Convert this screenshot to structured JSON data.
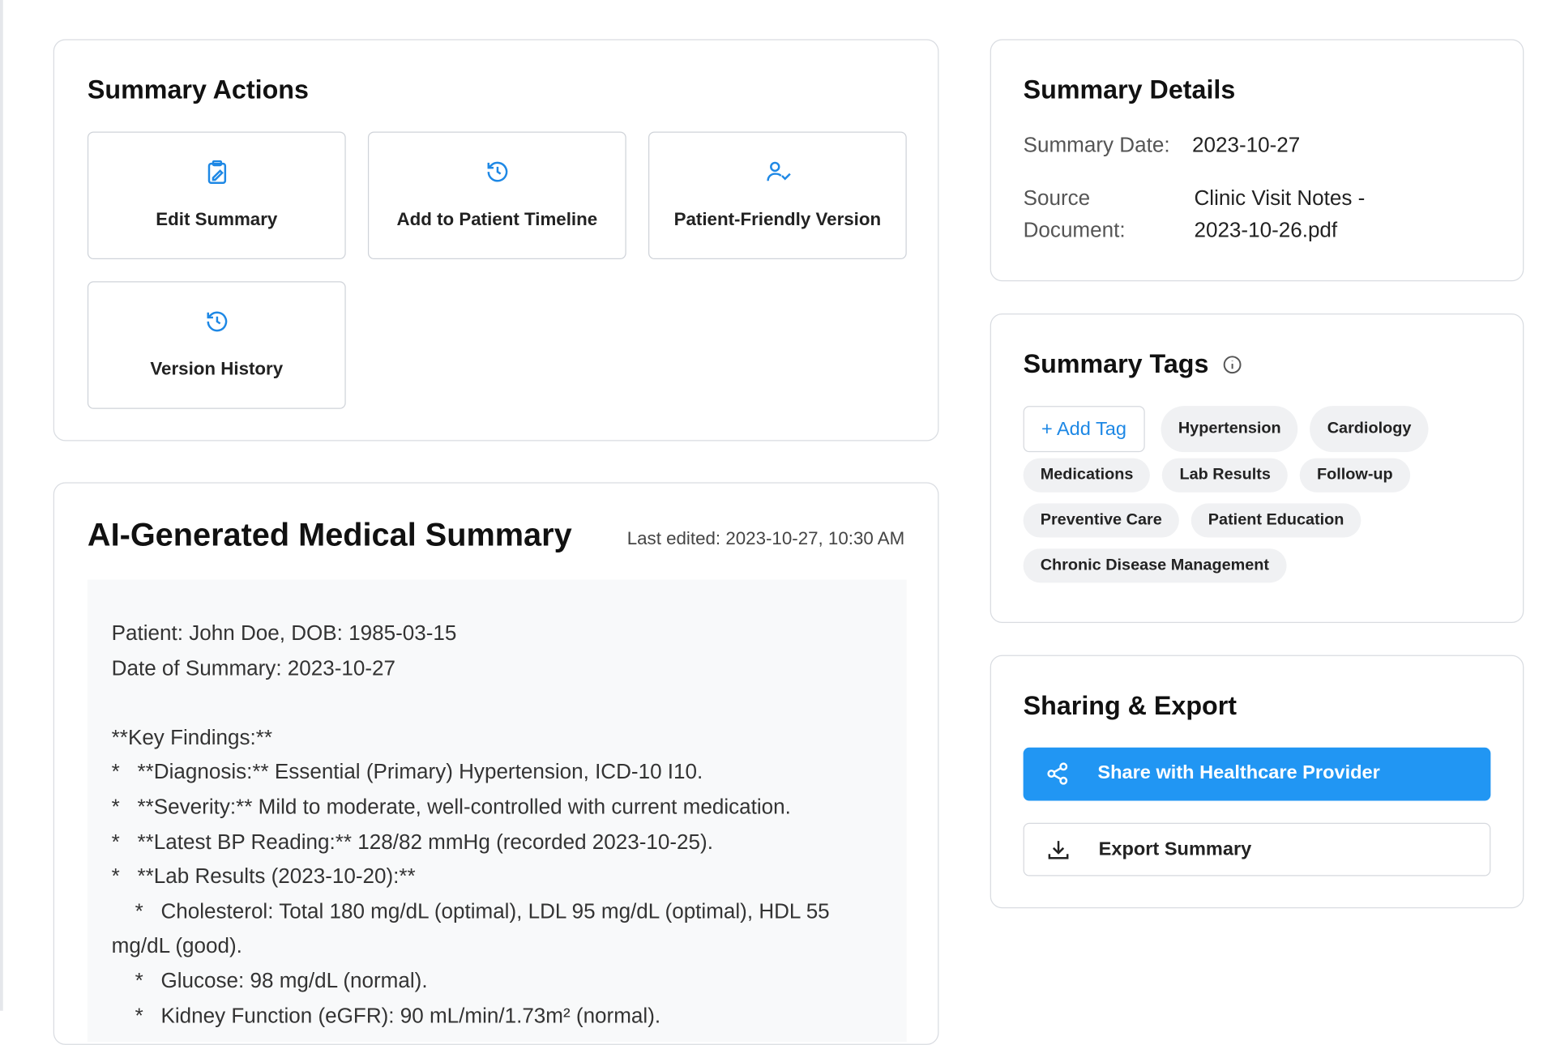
{
  "actions": {
    "title": "Summary Actions",
    "buttons": [
      "Edit Summary",
      "Add to Patient Timeline",
      "Patient-Friendly Version",
      "Version History"
    ]
  },
  "summary": {
    "title": "AI-Generated Medical Summary",
    "last_edited": "Last edited: 2023-10-27, 10:30 AM",
    "body": "Patient: John Doe, DOB: 1985-03-15\nDate of Summary: 2023-10-27\n\n**Key Findings:**\n*   **Diagnosis:** Essential (Primary) Hypertension, ICD-10 I10.\n*   **Severity:** Mild to moderate, well-controlled with current medication.\n*   **Latest BP Reading:** 128/82 mmHg (recorded 2023-10-25).\n*   **Lab Results (2023-10-20):**\n    *   Cholesterol: Total 180 mg/dL (optimal), LDL 95 mg/dL (optimal), HDL 55 mg/dL (good).\n    *   Glucose: 98 mg/dL (normal).\n    *   Kidney Function (eGFR): 90 mL/min/1.73m² (normal)."
  },
  "details": {
    "title": "Summary Details",
    "date_label": "Summary Date:",
    "date": "2023-10-27",
    "source_label": "Source Document:",
    "source": "Clinic Visit Notes - 2023-10-26.pdf"
  },
  "tags": {
    "title": "Summary Tags",
    "add": "Add Tag",
    "items": [
      "Hypertension",
      "Cardiology",
      "Medications",
      "Lab Results",
      "Follow-up",
      "Preventive Care",
      "Patient Education",
      "Chronic Disease Management"
    ]
  },
  "sharing": {
    "title": "Sharing & Export",
    "share": "Share with Healthcare Provider",
    "export": "Export Summary"
  }
}
